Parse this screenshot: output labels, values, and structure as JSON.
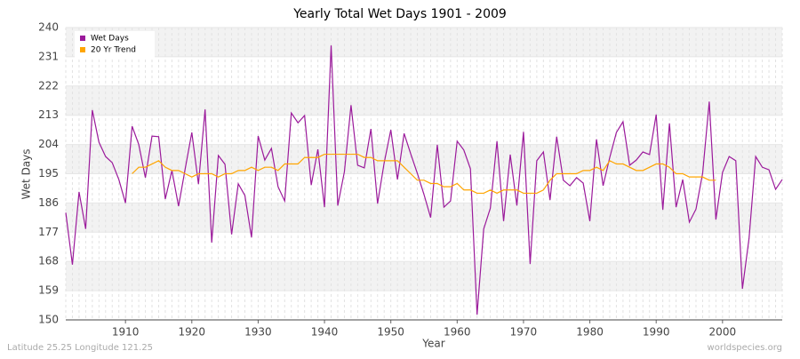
{
  "chart_data": {
    "type": "line",
    "title": "Yearly Total Wet Days 1901 - 2009",
    "x_label": "Year",
    "y_label": "Wet Days",
    "footer_left": "Latitude 25.25 Longitude 121.25",
    "footer_right": "worldspecies.org",
    "x": [
      1901,
      1902,
      1903,
      1904,
      1905,
      1906,
      1907,
      1908,
      1909,
      1910,
      1911,
      1912,
      1913,
      1914,
      1915,
      1916,
      1917,
      1918,
      1919,
      1920,
      1921,
      1922,
      1923,
      1924,
      1925,
      1926,
      1927,
      1928,
      1929,
      1930,
      1931,
      1932,
      1933,
      1934,
      1935,
      1936,
      1937,
      1938,
      1939,
      1940,
      1941,
      1942,
      1943,
      1944,
      1945,
      1946,
      1947,
      1948,
      1949,
      1950,
      1951,
      1952,
      1953,
      1954,
      1955,
      1956,
      1957,
      1958,
      1959,
      1960,
      1961,
      1962,
      1963,
      1964,
      1965,
      1966,
      1967,
      1968,
      1969,
      1970,
      1971,
      1972,
      1973,
      1974,
      1975,
      1976,
      1977,
      1978,
      1979,
      1980,
      1981,
      1982,
      1983,
      1984,
      1985,
      1986,
      1987,
      1988,
      1989,
      1990,
      1991,
      1992,
      1993,
      1994,
      1995,
      1996,
      1997,
      1998,
      1999,
      2000,
      2001,
      2002,
      2003,
      2004,
      2005,
      2006,
      2007,
      2008,
      2009
    ],
    "series": [
      {
        "name": "Wet Days",
        "color": "#9b1a9b",
        "values": [
          183,
          167,
          189.4,
          178,
          214.6,
          204.7,
          200.3,
          198.4,
          193.2,
          186,
          209.6,
          204,
          193.8,
          206.6,
          206.4,
          187.2,
          196,
          185,
          196.5,
          207.7,
          191.8,
          214.8,
          173.8,
          200.6,
          197.9,
          176.3,
          191.9,
          188.3,
          175.4,
          206.6,
          199.2,
          202.8,
          191,
          186.6,
          213.7,
          210.7,
          212.9,
          191.5,
          202.5,
          184.7,
          234.5,
          185.2,
          195.6,
          216.1,
          197.6,
          196.8,
          208.8,
          185.8,
          198.4,
          208.5,
          193.2,
          207.4,
          201.1,
          195.1,
          188.6,
          181.5,
          203.9,
          184.7,
          186.6,
          205,
          202.3,
          196.5,
          151.6,
          178,
          184.4,
          205,
          180.4,
          200.9,
          185.2,
          207.9,
          167.2,
          199,
          201.7,
          186.9,
          206.4,
          193,
          191.3,
          193.8,
          192.1,
          180.4,
          205.6,
          191.3,
          200,
          207.7,
          211,
          197.6,
          199.2,
          201.7,
          200.9,
          213.2,
          183.9,
          210.5,
          184.7,
          193.2,
          180.1,
          184.1,
          195.1,
          217.2,
          180.9,
          195.4,
          200.3,
          199,
          159.6,
          175.1,
          200.3,
          197,
          196.2,
          190.2,
          193.2
        ]
      },
      {
        "name": "20 Yr Trend",
        "color": "#ffa500",
        "values": [
          null,
          null,
          null,
          null,
          null,
          null,
          null,
          null,
          null,
          null,
          195,
          197,
          197,
          198,
          199,
          197,
          196,
          196,
          195,
          194,
          195,
          195,
          195,
          194,
          195,
          195,
          196,
          196,
          197,
          196,
          197,
          197,
          196,
          198,
          198,
          198,
          200,
          200,
          200,
          201,
          201,
          201,
          201,
          201,
          201,
          200,
          200,
          199,
          199,
          199,
          199,
          197,
          195,
          193,
          193,
          192,
          192,
          191,
          191,
          192,
          190,
          190,
          189,
          189,
          190,
          189,
          190,
          190,
          190,
          189,
          189,
          189,
          190,
          193,
          195,
          195,
          195,
          195,
          196,
          196,
          197,
          196,
          199,
          198,
          198,
          197,
          196,
          196,
          197,
          198,
          198,
          197,
          195,
          195,
          194,
          194,
          194,
          193,
          193,
          null,
          null,
          null,
          null,
          null,
          null,
          null,
          null,
          null,
          null
        ]
      }
    ],
    "xlim": [
      1901,
      2009
    ],
    "xticks": [
      1910,
      1920,
      1930,
      1940,
      1950,
      1960,
      1970,
      1980,
      1990,
      2000
    ],
    "ylim": [
      150,
      240
    ],
    "yticks": [
      150,
      159,
      168,
      177,
      186,
      195,
      204,
      213,
      222,
      231,
      240
    ],
    "grid": true,
    "legend": "top-left"
  }
}
